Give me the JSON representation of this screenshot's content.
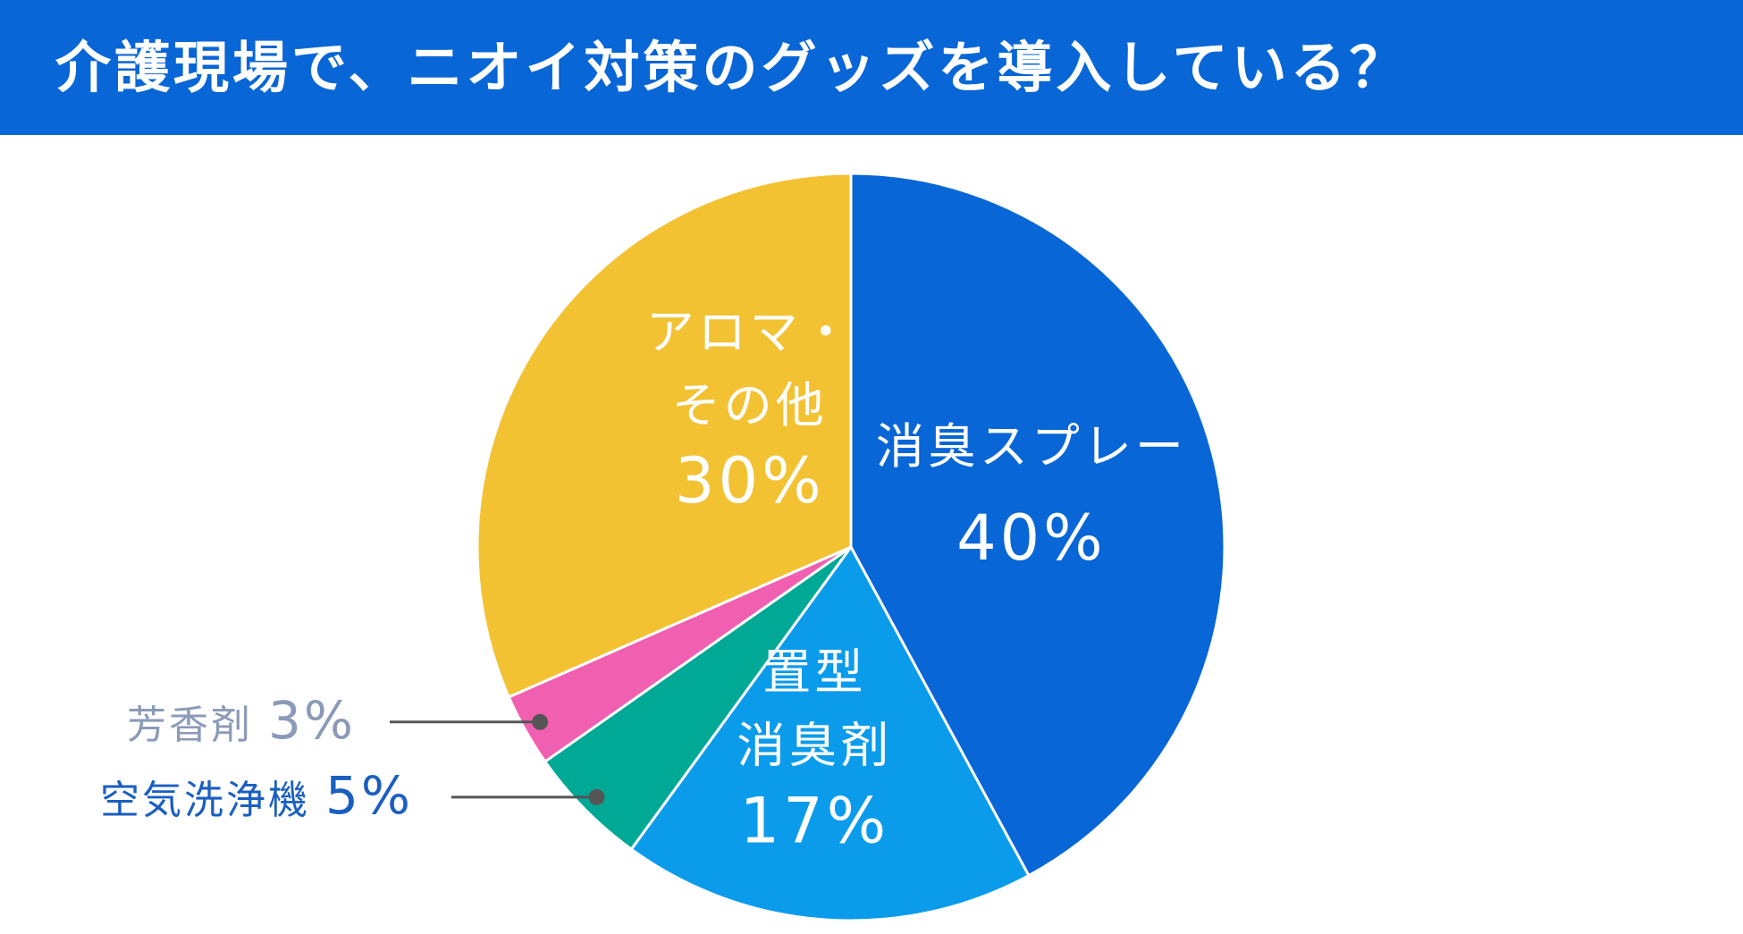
{
  "header": {
    "title": "介護現場で、ニオイ対策のグッズを導入している？"
  },
  "colors": {
    "header_bg": "#0866d6",
    "header_text": "#ffffff",
    "leader_line": "#555555"
  },
  "chart_data": {
    "type": "pie",
    "title": "介護現場で、ニオイ対策のグッズを導入している？",
    "start": "top",
    "direction": "clockwise",
    "unit": "%",
    "slices": [
      {
        "label": "消臭スプレー",
        "label_lines": [
          "消臭スプレー"
        ],
        "value": 40,
        "value_text": "40%",
        "color": "#0866d6",
        "label_placement": "inside",
        "text_color": "#ffffff"
      },
      {
        "label": "置型消臭剤",
        "label_lines": [
          "置型",
          "消臭剤"
        ],
        "value": 17,
        "value_text": "17%",
        "color": "#0b9beb",
        "label_placement": "inside",
        "text_color": "#ffffff"
      },
      {
        "label": "空気洗浄機",
        "label_lines": [
          "空気洗浄機"
        ],
        "value": 5,
        "value_text": "5%",
        "color": "#00a896",
        "label_placement": "outside-left",
        "text_color": "#1a5fc0"
      },
      {
        "label": "芳香剤",
        "label_lines": [
          "芳香剤"
        ],
        "value": 3,
        "value_text": "3%",
        "color": "#f05fb0",
        "label_placement": "outside-left",
        "text_color": "#8b9ab8"
      },
      {
        "label": "アロマ・その他",
        "label_lines": [
          "アロマ・",
          "その他"
        ],
        "value": 30,
        "value_text": "30%",
        "color": "#f2c233",
        "label_placement": "inside",
        "text_color": "#ffffff"
      }
    ]
  }
}
